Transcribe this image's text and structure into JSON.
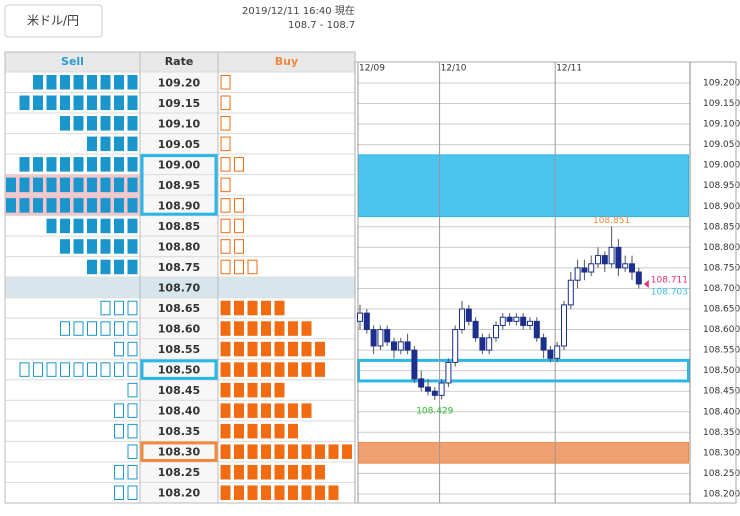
{
  "header": {
    "button": "米ドル/円",
    "timestamp": "2019/12/11 16:40 現在",
    "range": "108.7 - 108.7"
  },
  "table": {
    "headers": [
      "Sell",
      "Rate",
      "Buy"
    ],
    "current_index": 10,
    "pink_rows": [
      5,
      6
    ],
    "boxes": [
      {
        "from": 4,
        "to": 6,
        "color": "#29b6e8"
      },
      {
        "from": 14,
        "to": 14,
        "color": "#29b6e8"
      },
      {
        "from": 18,
        "to": 18,
        "color": "#f0883e"
      }
    ],
    "rows": [
      {
        "rate": "109.20",
        "sell": 8,
        "buy": 1
      },
      {
        "rate": "109.15",
        "sell": 9,
        "buy": 1
      },
      {
        "rate": "109.10",
        "sell": 6,
        "buy": 1
      },
      {
        "rate": "109.05",
        "sell": 4,
        "buy": 1
      },
      {
        "rate": "109.00",
        "sell": 9,
        "buy": 2
      },
      {
        "rate": "108.95",
        "sell": 10,
        "buy": 1
      },
      {
        "rate": "108.90",
        "sell": 10,
        "buy": 2
      },
      {
        "rate": "108.85",
        "sell": 7,
        "buy": 2
      },
      {
        "rate": "108.80",
        "sell": 6,
        "buy": 2
      },
      {
        "rate": "108.75",
        "sell": 4,
        "buy": 3
      },
      {
        "rate": "108.70",
        "sell": 0,
        "buy": 0
      },
      {
        "rate": "108.65",
        "sell": 3,
        "buy": 5
      },
      {
        "rate": "108.60",
        "sell": 6,
        "buy": 7
      },
      {
        "rate": "108.55",
        "sell": 2,
        "buy": 8
      },
      {
        "rate": "108.50",
        "sell": 9,
        "buy": 8
      },
      {
        "rate": "108.45",
        "sell": 1,
        "buy": 5
      },
      {
        "rate": "108.40",
        "sell": 2,
        "buy": 7
      },
      {
        "rate": "108.35",
        "sell": 2,
        "buy": 6
      },
      {
        "rate": "108.30",
        "sell": 1,
        "buy": 10
      },
      {
        "rate": "108.25",
        "sell": 2,
        "buy": 8
      },
      {
        "rate": "108.20",
        "sell": 2,
        "buy": 9
      }
    ]
  },
  "chart_data": {
    "type": "candlestick",
    "ylim": [
      108.178,
      109.251
    ],
    "yticks": [
      {
        "value": 109.2,
        "label": "109.200"
      },
      {
        "value": 109.15,
        "label": "109.150"
      },
      {
        "value": 109.1,
        "label": "109.100"
      },
      {
        "value": 109.05,
        "label": "109.050"
      },
      {
        "value": 109.0,
        "label": "109.000"
      },
      {
        "value": 108.95,
        "label": "108.950"
      },
      {
        "value": 108.9,
        "label": "108.900"
      },
      {
        "value": 108.85,
        "label": "108.850"
      },
      {
        "value": 108.8,
        "label": "108.800"
      },
      {
        "value": 108.75,
        "label": "108.750"
      },
      {
        "value": 108.7,
        "label": "108.700"
      },
      {
        "value": 108.65,
        "label": "108.650"
      },
      {
        "value": 108.6,
        "label": "108.600"
      },
      {
        "value": 108.55,
        "label": "108.550"
      },
      {
        "value": 108.5,
        "label": "108.500"
      },
      {
        "value": 108.45,
        "label": "108.450"
      },
      {
        "value": 108.4,
        "label": "108.400"
      },
      {
        "value": 108.35,
        "label": "108.350"
      },
      {
        "value": 108.3,
        "label": "108.300"
      },
      {
        "value": 108.25,
        "label": "108.250"
      },
      {
        "value": 108.2,
        "label": "108.200"
      }
    ],
    "dates": [
      {
        "label": "12/09",
        "index": 0
      },
      {
        "label": "12/10",
        "index": 12
      },
      {
        "label": "12/11",
        "index": 29
      }
    ],
    "zones": [
      {
        "low": 108.875,
        "high": 109.025,
        "fill": "#4cc4f0",
        "stroke": "#29b6e8"
      },
      {
        "low": 108.475,
        "high": 108.525,
        "fill": "none",
        "stroke": "#29b6e8"
      },
      {
        "low": 108.275,
        "high": 108.325,
        "fill": "#f0a070",
        "stroke": "#f0883e"
      }
    ],
    "annotations": [
      {
        "text": "108.851",
        "value": 108.851,
        "index": 37,
        "color": "#f0883e"
      },
      {
        "text": "108.429",
        "value": 108.429,
        "index": 11,
        "color": "#2db82d"
      },
      {
        "text": "108.711",
        "value": 108.711,
        "index": 41,
        "color": "#e8336f"
      },
      {
        "text": "108.703",
        "value": 108.703,
        "index": 41,
        "color": "#3bbde8"
      }
    ],
    "candles": [
      [
        108.62,
        108.66,
        108.6,
        108.64
      ],
      [
        108.64,
        108.65,
        108.59,
        108.6
      ],
      [
        108.6,
        108.61,
        108.54,
        108.56
      ],
      [
        108.56,
        108.61,
        108.55,
        108.6
      ],
      [
        108.6,
        108.61,
        108.56,
        108.57
      ],
      [
        108.57,
        108.58,
        108.53,
        108.55
      ],
      [
        108.55,
        108.58,
        108.54,
        108.57
      ],
      [
        108.57,
        108.59,
        108.54,
        108.55
      ],
      [
        108.55,
        108.56,
        108.47,
        108.48
      ],
      [
        108.48,
        108.5,
        108.45,
        108.46
      ],
      [
        108.46,
        108.48,
        108.44,
        108.45
      ],
      [
        108.45,
        108.46,
        108.429,
        108.44
      ],
      [
        108.44,
        108.48,
        108.43,
        108.47
      ],
      [
        108.47,
        108.53,
        108.46,
        108.52
      ],
      [
        108.52,
        108.61,
        108.51,
        108.6
      ],
      [
        108.6,
        108.67,
        108.59,
        108.65
      ],
      [
        108.65,
        108.66,
        108.61,
        108.62
      ],
      [
        108.62,
        108.63,
        108.57,
        108.58
      ],
      [
        108.58,
        108.59,
        108.54,
        108.55
      ],
      [
        108.55,
        108.59,
        108.54,
        108.58
      ],
      [
        108.58,
        108.62,
        108.57,
        108.61
      ],
      [
        108.61,
        108.64,
        108.6,
        108.63
      ],
      [
        108.63,
        108.64,
        108.61,
        108.62
      ],
      [
        108.62,
        108.64,
        108.61,
        108.63
      ],
      [
        108.63,
        108.64,
        108.6,
        108.61
      ],
      [
        108.61,
        108.63,
        108.6,
        108.62
      ],
      [
        108.62,
        108.63,
        108.57,
        108.58
      ],
      [
        108.58,
        108.59,
        108.53,
        108.55
      ],
      [
        108.55,
        108.56,
        108.52,
        108.53
      ],
      [
        108.53,
        108.57,
        108.52,
        108.56
      ],
      [
        108.56,
        108.67,
        108.55,
        108.66
      ],
      [
        108.66,
        108.74,
        108.65,
        108.72
      ],
      [
        108.72,
        108.77,
        108.7,
        108.75
      ],
      [
        108.75,
        108.77,
        108.72,
        108.74
      ],
      [
        108.74,
        108.78,
        108.73,
        108.76
      ],
      [
        108.76,
        108.8,
        108.75,
        108.78
      ],
      [
        108.78,
        108.79,
        108.74,
        108.76
      ],
      [
        108.76,
        108.851,
        108.75,
        108.8
      ],
      [
        108.8,
        108.82,
        108.73,
        108.75
      ],
      [
        108.75,
        108.78,
        108.74,
        108.76
      ],
      [
        108.76,
        108.78,
        108.72,
        108.74
      ],
      [
        108.74,
        108.75,
        108.7,
        108.711
      ]
    ]
  }
}
